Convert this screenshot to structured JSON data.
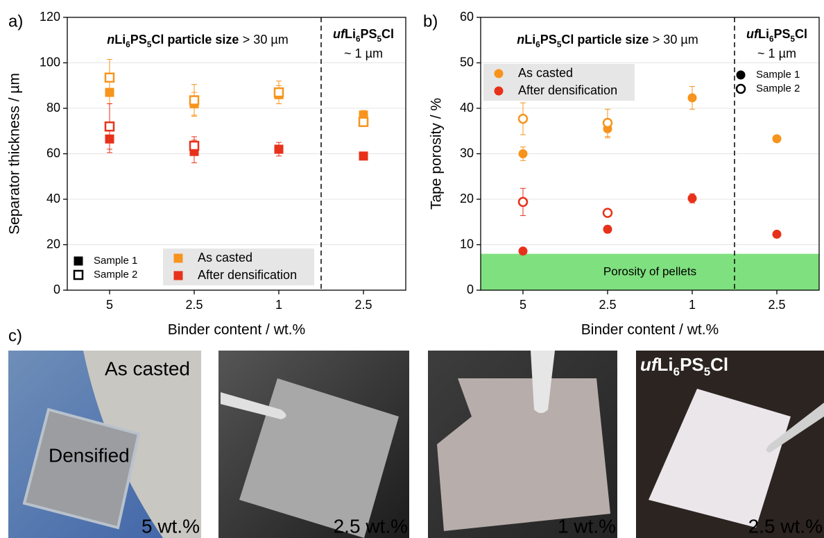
{
  "chart_data": [
    {
      "type": "scatter",
      "panel_label": "a)",
      "x_label": "Binder content / wt.%",
      "y_label": "Separator thickness / µm",
      "categories": [
        "5",
        "2.5",
        "1",
        "2.5"
      ],
      "ylim": [
        0,
        120
      ],
      "yticks": [
        0,
        20,
        40,
        60,
        80,
        100,
        120
      ],
      "grid": true,
      "marker": "square",
      "annotation": [
        "n",
        "Li",
        "6",
        "PS",
        "5",
        "Cl particle size",
        "> 30 µm"
      ],
      "region_label": [
        "uf",
        "Li",
        "6",
        "PS",
        "5",
        "Cl"
      ],
      "region_sublabel": "~ 1 µm",
      "series": [
        {
          "name": "As casted",
          "color": "#f7941d",
          "samples": [
            {
              "name": "Sample 1",
              "filled": true,
              "values": [
                87,
                82,
                86,
                77
              ],
              "errors": [
                5,
                5,
                4,
                2
              ]
            },
            {
              "name": "Sample 2",
              "filled": false,
              "values": [
                93.5,
                83.5,
                87,
                74
              ],
              "errors": [
                8,
                7,
                5,
                2
              ]
            }
          ]
        },
        {
          "name": "After densification",
          "color": "#e8311a",
          "samples": [
            {
              "name": "Sample 1",
              "filled": true,
              "values": [
                66.5,
                61,
                62,
                59
              ],
              "errors": [
                6,
                5,
                3,
                1
              ]
            },
            {
              "name": "Sample 2",
              "filled": false,
              "values": [
                72,
                63.5,
                null,
                null
              ],
              "errors": [
                10,
                4,
                null,
                null
              ]
            }
          ]
        }
      ]
    },
    {
      "type": "scatter",
      "panel_label": "b)",
      "x_label": "Binder content / wt.%",
      "y_label": "Tape porosity / %",
      "categories": [
        "5",
        "2.5",
        "1",
        "2.5"
      ],
      "ylim": [
        0,
        60
      ],
      "yticks": [
        0,
        10,
        20,
        30,
        40,
        50,
        60
      ],
      "grid": true,
      "marker": "circle",
      "annotation": [
        "n",
        "Li",
        "6",
        "PS",
        "5",
        "Cl particle size",
        "> 30 µm"
      ],
      "region_label": [
        "uf",
        "Li",
        "6",
        "PS",
        "5",
        "Cl"
      ],
      "region_sublabel": "~ 1 µm",
      "band": {
        "label": "Porosity of pellets",
        "range": [
          0,
          8
        ],
        "color": "#7fe07f"
      },
      "series": [
        {
          "name": "As casted",
          "color": "#f7941d",
          "samples": [
            {
              "name": "Sample 1",
              "filled": true,
              "values": [
                30,
                35.5,
                42.3,
                33.3
              ],
              "errors": [
                1.5,
                2,
                2.5,
                0.3
              ]
            },
            {
              "name": "Sample 2",
              "filled": false,
              "values": [
                37.7,
                36.8,
                null,
                null
              ],
              "errors": [
                3.5,
                3,
                null,
                null
              ]
            }
          ]
        },
        {
          "name": "After densification",
          "color": "#e8311a",
          "samples": [
            {
              "name": "Sample 1",
              "filled": true,
              "values": [
                8.6,
                13.4,
                20.2,
                12.3
              ],
              "errors": [
                0.5,
                0.8,
                1,
                0.3
              ]
            },
            {
              "name": "Sample 2",
              "filled": false,
              "values": [
                19.4,
                17,
                null,
                null
              ],
              "errors": [
                3,
                0.5,
                null,
                null
              ]
            }
          ]
        }
      ]
    }
  ],
  "photos_panel_label": "c)",
  "photos": [
    {
      "labels": [
        "As casted",
        "Densified"
      ],
      "caption": "5 wt.%"
    },
    {
      "labels": [],
      "caption": "2.5 wt.%"
    },
    {
      "labels": [],
      "caption": "1 wt.%"
    },
    {
      "labels": [
        [
          "uf",
          "Li",
          "6",
          "PS",
          "5",
          "Cl"
        ]
      ],
      "caption": "2.5 wt.%"
    }
  ]
}
